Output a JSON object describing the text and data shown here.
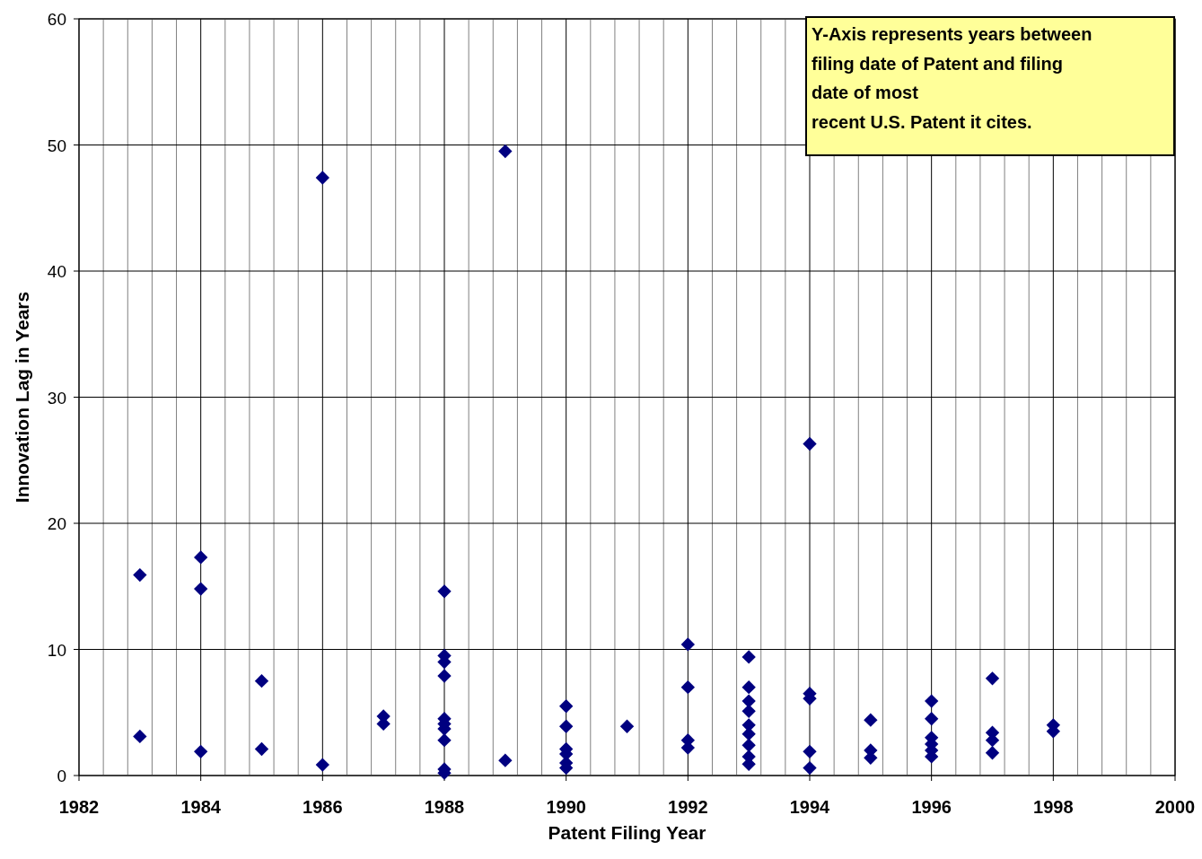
{
  "chart_data": {
    "type": "scatter",
    "xlabel": "Patent Filing Year",
    "ylabel": "Innovation Lag in Years",
    "annotations": [
      "Y-Axis represents years between\nfiling date of Patent and filing\ndate of most\nrecent U.S. Patent it cites."
    ],
    "series": [
      {
        "color": "#000080",
        "x": [
          1983,
          1983,
          1984,
          1984,
          1984,
          1985,
          1985,
          1986,
          1986,
          1987,
          1987,
          1988,
          1988,
          1988,
          1988,
          1988,
          1988,
          1988,
          1988,
          1988,
          1988,
          1989,
          1989,
          1990,
          1990,
          1990,
          1990,
          1990,
          1990,
          1991,
          1992,
          1992,
          1992,
          1992,
          1993,
          1993,
          1993,
          1993,
          1993,
          1993,
          1993,
          1993,
          1993,
          1994,
          1994,
          1994,
          1994,
          1994,
          1995,
          1995,
          1995,
          1996,
          1996,
          1996,
          1996,
          1996,
          1996,
          1997,
          1997,
          1997,
          1997,
          1998,
          1998
        ],
        "values": [
          15.9,
          3.1,
          17.3,
          14.8,
          1.9,
          7.5,
          2.1,
          47.4,
          0.85,
          4.7,
          4.1,
          14.6,
          9.5,
          9.0,
          7.9,
          4.5,
          4.1,
          3.7,
          2.8,
          0.5,
          0.2,
          49.5,
          1.2,
          5.5,
          3.9,
          2.1,
          1.7,
          1.0,
          0.6,
          3.9,
          10.4,
          7.0,
          2.8,
          2.2,
          9.4,
          7.0,
          5.9,
          5.1,
          4.0,
          3.3,
          2.4,
          1.5,
          0.9,
          26.3,
          6.5,
          6.1,
          1.9,
          0.6,
          4.4,
          2.0,
          1.4,
          5.9,
          4.5,
          3.0,
          2.5,
          2.0,
          1.5,
          7.7,
          3.4,
          2.8,
          1.8,
          4.0,
          3.5
        ]
      }
    ],
    "xlim": [
      1982,
      2000
    ],
    "xticks": [
      1982,
      {
        "value": 1982.4,
        "label": null
      },
      {
        "value": 1982.8,
        "label": null
      },
      {
        "value": 1983.2,
        "label": null
      },
      {
        "value": 1983.6,
        "label": null
      },
      1984,
      {
        "value": 1984.4,
        "label": null
      },
      {
        "value": 1984.8,
        "label": null
      },
      {
        "value": 1985.2,
        "label": null
      },
      {
        "value": 1985.6,
        "label": null
      },
      1986,
      {
        "value": 1986.4,
        "label": null
      },
      {
        "value": 1986.8,
        "label": null
      },
      {
        "value": 1987.2,
        "label": null
      },
      {
        "value": 1987.6,
        "label": null
      },
      1988,
      {
        "value": 1988.4,
        "label": null
      },
      {
        "value": 1988.8,
        "label": null
      },
      {
        "value": 1989.2,
        "label": null
      },
      {
        "value": 1989.6,
        "label": null
      },
      1990,
      {
        "value": 1990.4,
        "label": null
      },
      {
        "value": 1990.8,
        "label": null
      },
      {
        "value": 1991.2,
        "label": null
      },
      {
        "value": 1991.6,
        "label": null
      },
      1992,
      {
        "value": 1992.4,
        "label": null
      },
      {
        "value": 1992.8,
        "label": null
      },
      {
        "value": 1993.2,
        "label": null
      },
      {
        "value": 1993.6,
        "label": null
      },
      1994,
      {
        "value": 1994.4,
        "label": null
      },
      {
        "value": 1994.8,
        "label": null
      },
      {
        "value": 1995.2,
        "label": null
      },
      {
        "value": 1995.6,
        "label": null
      },
      1996,
      {
        "value": 1996.4,
        "label": null
      },
      {
        "value": 1996.8,
        "label": null
      },
      {
        "value": 1997.2,
        "label": null
      },
      {
        "value": 1997.6,
        "label": null
      },
      1998,
      {
        "value": 1998.4,
        "label": null
      },
      {
        "value": 1998.8,
        "label": null
      },
      {
        "value": 1999.2,
        "label": null
      },
      {
        "value": 1999.6,
        "label": null
      },
      2000
    ],
    "ylim": [
      0,
      60
    ],
    "yticks": [
      0,
      10,
      20,
      30,
      40,
      50,
      60
    ],
    "grid": true,
    "marker": "diamond"
  }
}
